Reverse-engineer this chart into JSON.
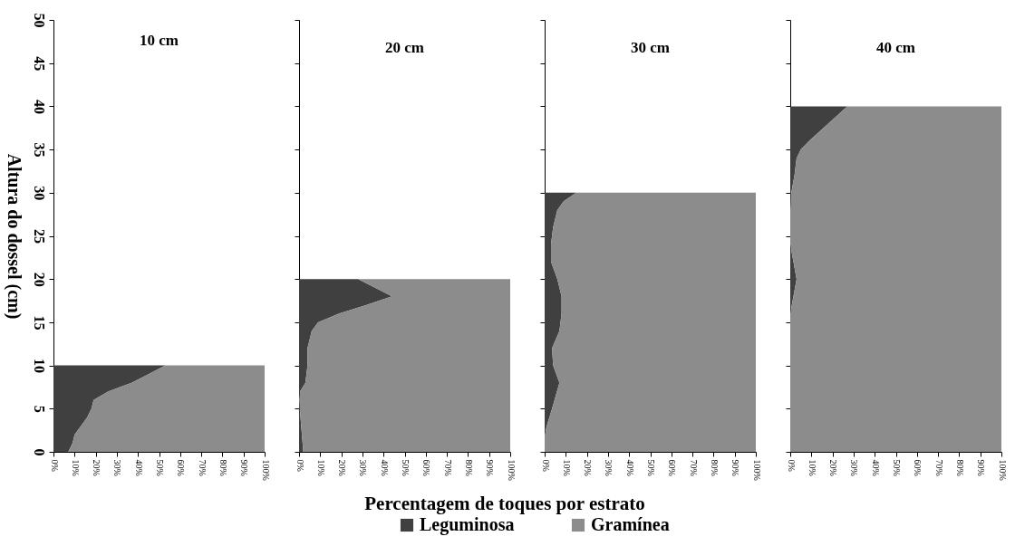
{
  "chart_data": [
    {
      "type": "area",
      "title": "10 cm",
      "ylabel": "Altura do dossel (cm)",
      "xlabel": "Percentagem de toques por estrato",
      "orientation": "horizontal",
      "stacked": true,
      "legend": "bottom",
      "x": [
        0,
        1,
        2,
        3,
        4,
        5,
        6,
        7,
        8,
        9,
        10
      ],
      "series": [
        {
          "name": "Leguminosa",
          "color": "#404040",
          "values": [
            7,
            9,
            10,
            13,
            16,
            18,
            19,
            26,
            37,
            45,
            53
          ]
        },
        {
          "name": "Gramínea",
          "color": "#8c8c8c",
          "values": [
            93,
            91,
            90,
            87,
            84,
            82,
            81,
            74,
            63,
            55,
            47
          ]
        }
      ],
      "xlim": [
        0,
        100
      ],
      "xticks": [
        {
          "value": 0,
          "label": "0%"
        },
        {
          "value": 10,
          "label": "10%"
        },
        {
          "value": 20,
          "label": "20%"
        },
        {
          "value": 30,
          "label": "30%"
        },
        {
          "value": 40,
          "label": "40%"
        },
        {
          "value": 50,
          "label": "50%"
        },
        {
          "value": 60,
          "label": "60%"
        },
        {
          "value": 70,
          "label": "70%"
        },
        {
          "value": 80,
          "label": "80%"
        },
        {
          "value": 90,
          "label": "90%"
        },
        {
          "value": 100,
          "label": "100%"
        }
      ],
      "ylim": [
        0,
        50
      ],
      "yticks": [
        0,
        5,
        10,
        15,
        20,
        25,
        30,
        35,
        40,
        45,
        50
      ]
    },
    {
      "type": "area",
      "title": "20 cm",
      "orientation": "horizontal",
      "stacked": true,
      "tick_labels": "x",
      "x": [
        0,
        3,
        6,
        7,
        8,
        10,
        12,
        14,
        15,
        16,
        17,
        18,
        19,
        20
      ],
      "series": [
        {
          "name": "Leguminosa",
          "color": "#404040",
          "values": [
            2,
            1,
            0,
            0.5,
            3,
            4,
            4,
            6,
            9,
            19,
            32,
            44,
            36,
            28
          ]
        },
        {
          "name": "Gramínea",
          "color": "#8c8c8c",
          "values": [
            98,
            99,
            100,
            99.5,
            97,
            96,
            96,
            94,
            91,
            81,
            68,
            56,
            64,
            72
          ]
        }
      ],
      "xlim": [
        0,
        100
      ],
      "xticks": [
        {
          "value": 0,
          "label": "0%"
        },
        {
          "value": 10,
          "label": "10%"
        },
        {
          "value": 20,
          "label": "20%"
        },
        {
          "value": 30,
          "label": "30%"
        },
        {
          "value": 40,
          "label": "40%"
        },
        {
          "value": 50,
          "label": "50%"
        },
        {
          "value": 60,
          "label": "60%"
        },
        {
          "value": 70,
          "label": "70%"
        },
        {
          "value": 80,
          "label": "80%"
        },
        {
          "value": 90,
          "label": "90%"
        },
        {
          "value": 100,
          "label": "100%"
        }
      ],
      "ylim": [
        0,
        50
      ],
      "yticks": [
        0,
        5,
        10,
        15,
        20,
        25,
        30,
        35,
        40,
        45,
        50
      ]
    },
    {
      "type": "area",
      "title": "30 cm",
      "orientation": "horizontal",
      "stacked": true,
      "tick_labels": "x",
      "x": [
        0,
        2,
        3,
        5,
        8,
        10,
        12,
        14,
        16,
        18,
        20,
        22,
        24,
        26,
        28,
        29,
        30
      ],
      "series": [
        {
          "name": "Leguminosa",
          "color": "#404040",
          "values": [
            0,
            0,
            1,
            3.5,
            7,
            4,
            3.5,
            7,
            8,
            8,
            6,
            3,
            3,
            4,
            6,
            9,
            15
          ]
        },
        {
          "name": "Gramínea",
          "color": "#8c8c8c",
          "values": [
            100,
            100,
            99,
            96.5,
            93,
            96,
            96.5,
            93,
            92,
            92,
            94,
            97,
            97,
            96,
            94,
            91,
            85
          ]
        }
      ],
      "xlim": [
        0,
        100
      ],
      "xticks": [
        {
          "value": 0,
          "label": "0%"
        },
        {
          "value": 10,
          "label": "10%"
        },
        {
          "value": 20,
          "label": "20%"
        },
        {
          "value": 30,
          "label": "30%"
        },
        {
          "value": 40,
          "label": "40%"
        },
        {
          "value": 50,
          "label": "50%"
        },
        {
          "value": 60,
          "label": "60%"
        },
        {
          "value": 70,
          "label": "70%"
        },
        {
          "value": 80,
          "label": "80%"
        },
        {
          "value": 90,
          "label": "90%"
        },
        {
          "value": 100,
          "label": "100%"
        }
      ],
      "ylim": [
        0,
        50
      ],
      "yticks": [
        0,
        5,
        10,
        15,
        20,
        25,
        30,
        35,
        40,
        45,
        50
      ]
    },
    {
      "type": "area",
      "title": "40 cm",
      "orientation": "horizontal",
      "stacked": true,
      "tick_labels": "x",
      "x": [
        0,
        16,
        18,
        20,
        22,
        24,
        28,
        30,
        32,
        34,
        35,
        36,
        38,
        40
      ],
      "series": [
        {
          "name": "Leguminosa",
          "color": "#404040",
          "values": [
            0,
            0,
            1.5,
            3,
            1.5,
            0,
            0,
            0.5,
            2,
            3,
            5,
            9,
            18,
            27
          ]
        },
        {
          "name": "Gramínea",
          "color": "#8c8c8c",
          "values": [
            100,
            100,
            98.5,
            97,
            98.5,
            100,
            100,
            99.5,
            98,
            97,
            95,
            91,
            82,
            73
          ]
        }
      ],
      "xlim": [
        0,
        100
      ],
      "xticks": [
        {
          "value": 0,
          "label": "0%"
        },
        {
          "value": 10,
          "label": "10%"
        },
        {
          "value": 20,
          "label": "20%"
        },
        {
          "value": 30,
          "label": "30%"
        },
        {
          "value": 40,
          "label": "40%"
        },
        {
          "value": 50,
          "label": "50%"
        },
        {
          "value": 60,
          "label": "60%"
        },
        {
          "value": 70,
          "label": "70%"
        },
        {
          "value": 80,
          "label": "80%"
        },
        {
          "value": 90,
          "label": "90%"
        },
        {
          "value": 100,
          "label": "100%"
        }
      ],
      "ylim": [
        0,
        50
      ],
      "yticks": [
        0,
        5,
        10,
        15,
        20,
        25,
        30,
        35,
        40,
        45,
        50
      ]
    }
  ]
}
